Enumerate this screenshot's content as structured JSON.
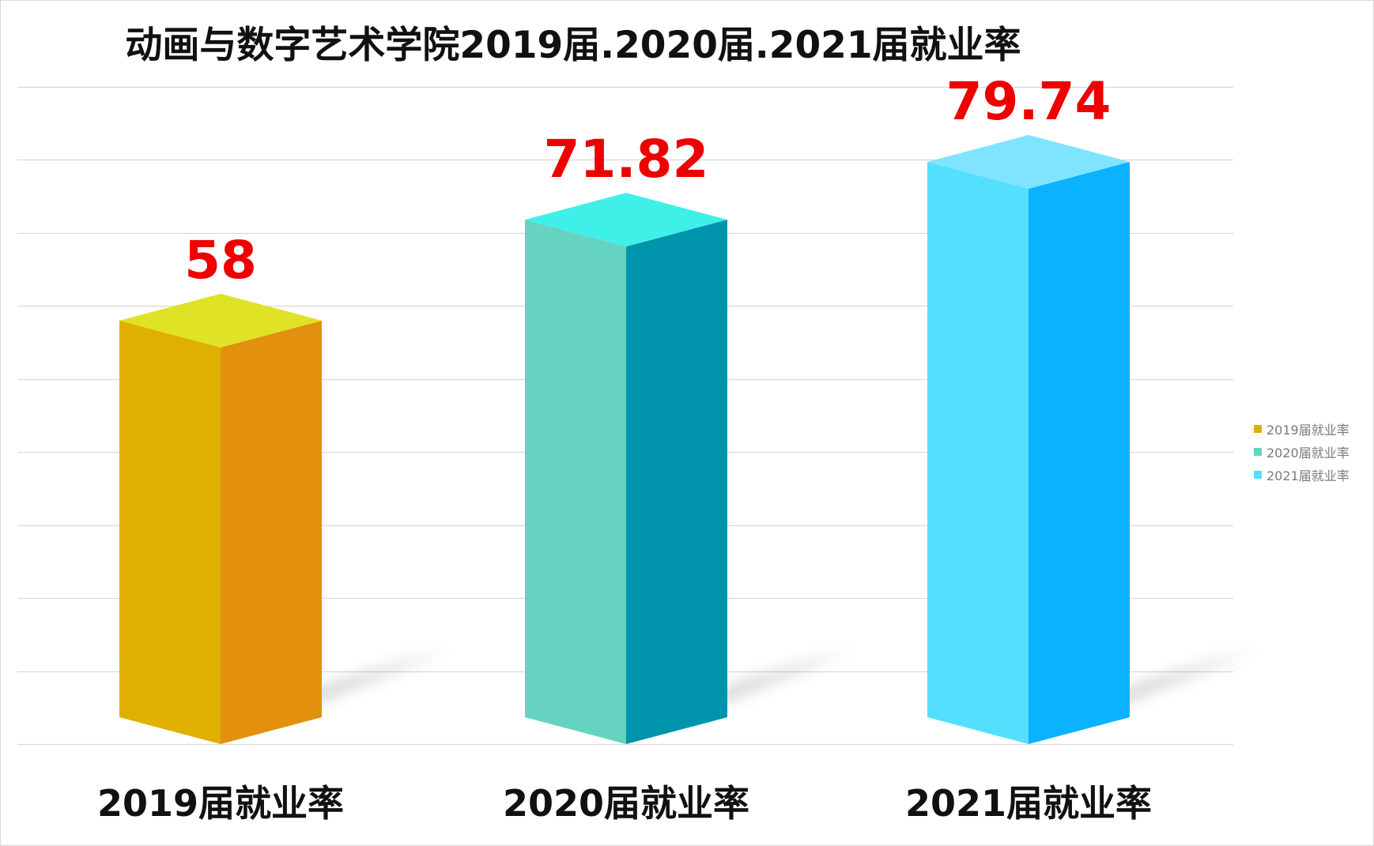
{
  "chart_data": {
    "type": "bar",
    "title": "动画与数字艺术学院2019届.2020届.2021届就业率",
    "categories": [
      "2019届就业率",
      "2020届就业率",
      "2021届就业率"
    ],
    "values": [
      58,
      71.82,
      79.74
    ],
    "value_labels": [
      "58",
      "71.82",
      "79.74"
    ],
    "series": [
      {
        "name": "2019届就业率",
        "value": 58,
        "color": "#e0b000",
        "side_color": "#e3900e",
        "top_color": "#dfe225"
      },
      {
        "name": "2020届就业率",
        "value": 71.82,
        "color": "#66d2c2",
        "side_color": "#0094ac",
        "top_color": "#3ff0e8"
      },
      {
        "name": "2021届就业率",
        "value": 79.74,
        "color": "#55dfff",
        "side_color": "#0bb2ff",
        "top_color": "#7fe4ff"
      }
    ],
    "ylim": [
      0,
      90
    ],
    "grid": true,
    "bar_style": "3d-box",
    "legend_position": "right",
    "label_color": "#ee0000"
  }
}
